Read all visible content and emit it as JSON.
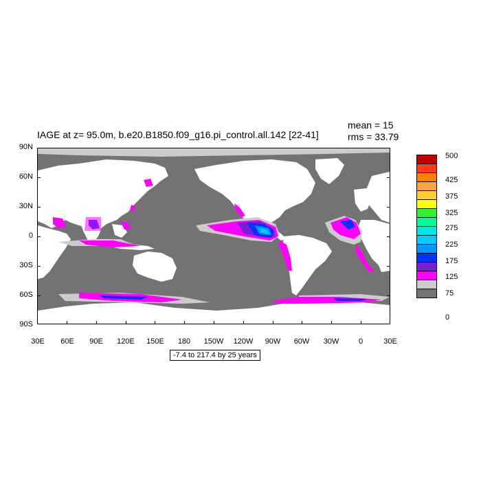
{
  "title": "IAGE at z=  95.0m, b.e20.B1850.f09_g16.pi_control.all.142 [22-41]",
  "stats": {
    "mean": "mean = 15",
    "rms": "rms = 33.79"
  },
  "range_label": "-7.4 to 217.4 by 25 years",
  "y_labels": [
    "90N",
    "60N",
    "30N",
    "0",
    "30S",
    "60S",
    "90S"
  ],
  "x_labels": [
    "30E",
    "60E",
    "90E",
    "120E",
    "150E",
    "180",
    "150W",
    "120W",
    "90W",
    "60W",
    "30W",
    "0",
    "30E"
  ],
  "colorbar": {
    "labels": [
      "500",
      "425",
      "375",
      "325",
      "275",
      "225",
      "175",
      "125",
      "75",
      "0"
    ],
    "colors": [
      "#c00000",
      "#ff3a1e",
      "#ff7f00",
      "#ffa43c",
      "#ffcc33",
      "#ffff00",
      "#33ee33",
      "#00ff99",
      "#00e6e6",
      "#00ccff",
      "#0099ff",
      "#0033ff",
      "#7a1fd6",
      "#ff00ff",
      "#cccccc",
      "#737373"
    ]
  },
  "colors": {
    "ocean_background": "#737373",
    "land": "#ffffff",
    "low_age_band": "#cccccc"
  }
}
